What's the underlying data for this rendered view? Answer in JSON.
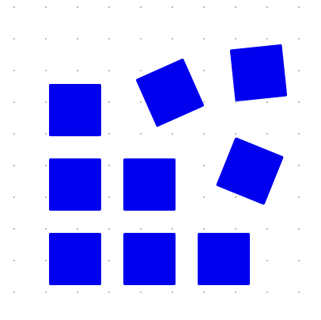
{
  "canvas": {
    "background_color": "#ffffff",
    "dot_grid": {
      "visible": true,
      "dot_color": "#8a8a8a"
    }
  },
  "tiles": {
    "color": "#0000ee",
    "count": 9,
    "items": [
      {
        "name": "square-tile",
        "rotated": false
      },
      {
        "name": "square-tile",
        "rotated": true
      },
      {
        "name": "square-tile",
        "rotated": true
      },
      {
        "name": "square-tile",
        "rotated": false
      },
      {
        "name": "square-tile",
        "rotated": false
      },
      {
        "name": "square-tile",
        "rotated": true
      },
      {
        "name": "square-tile",
        "rotated": false
      },
      {
        "name": "square-tile",
        "rotated": false
      },
      {
        "name": "square-tile",
        "rotated": false
      }
    ]
  }
}
